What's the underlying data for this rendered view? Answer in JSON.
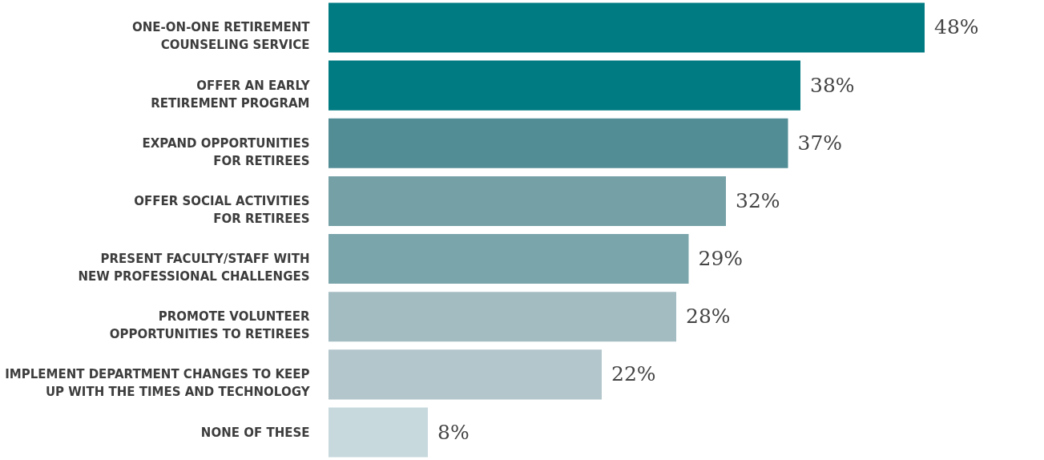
{
  "chart_data": {
    "type": "bar",
    "orientation": "horizontal",
    "categories": [
      "ONE-ON-ONE RETIREMENT\nCOUNSELING SERVICE",
      "OFFER AN EARLY\nRETIREMENT PROGRAM",
      "EXPAND OPPORTUNITIES\nFOR RETIREES",
      "OFFER SOCIAL ACTIVITIES\nFOR RETIREES",
      "PRESENT FACULTY/STAFF WITH\nNEW PROFESSIONAL CHALLENGES",
      "PROMOTE VOLUNTEER\nOPPORTUNITIES TO RETIREES",
      "IMPLEMENT DEPARTMENT CHANGES TO KEEP\nUP WITH THE TIMES AND TECHNOLOGY",
      "NONE OF THESE"
    ],
    "values": [
      48,
      38,
      37,
      32,
      29,
      28,
      22,
      8
    ],
    "value_labels": [
      "48%",
      "38%",
      "37%",
      "32%",
      "29%",
      "28%",
      "22%",
      "8%"
    ],
    "colors": [
      "#007b82",
      "#007b82",
      "#528d96",
      "#74a0a6",
      "#7aa5ab",
      "#a3bcc2",
      "#b2c6cc",
      "#c8d9dd"
    ],
    "grid": false
  }
}
